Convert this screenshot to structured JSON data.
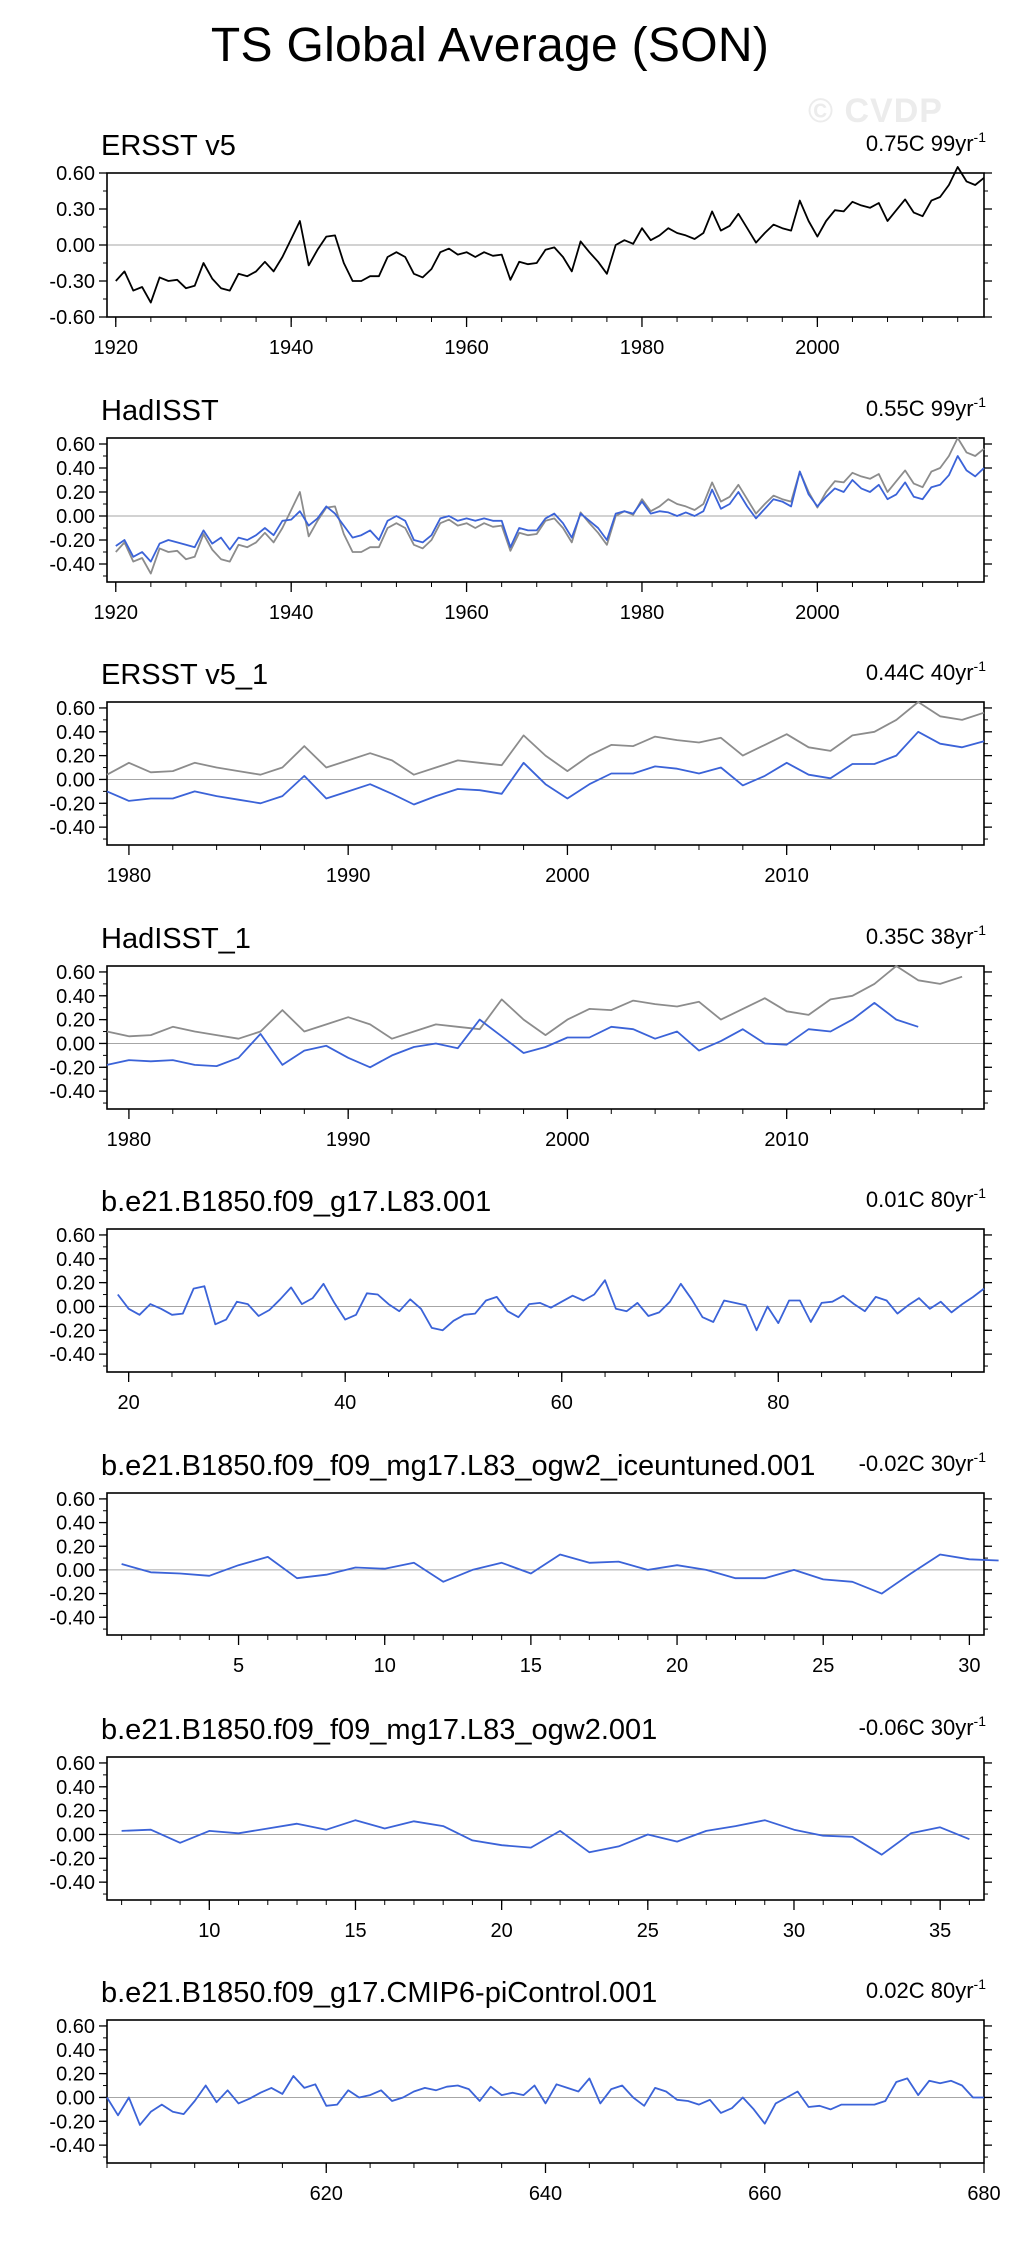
{
  "title": "TS Global Average (SON)",
  "watermark": "© CVDP",
  "colors": {
    "primary": "#000000",
    "model": "#3b63d8",
    "reference": "#8c8c8c",
    "zero": "#a6a6a6"
  },
  "chart_data": [
    {
      "type": "line",
      "title": "ERSST v5",
      "trend_label": {
        "value": "0.75C 99yr",
        "superscript": "-1"
      },
      "xlim": [
        1919,
        2019
      ],
      "ylim": [
        -0.6,
        0.6
      ],
      "yticks": [
        "0.60",
        "0.30",
        "0.00",
        "-0.30",
        "-0.60"
      ],
      "xticks": [
        1920,
        1940,
        1960,
        1980,
        2000
      ],
      "x_start": 1920,
      "series": [
        {
          "color": "primary",
          "values": [
            -0.3,
            -0.22,
            -0.38,
            -0.35,
            -0.48,
            -0.27,
            -0.3,
            -0.29,
            -0.36,
            -0.34,
            -0.15,
            -0.28,
            -0.36,
            -0.38,
            -0.24,
            -0.26,
            -0.22,
            -0.14,
            -0.22,
            -0.1,
            0.05,
            0.2,
            -0.17,
            -0.04,
            0.07,
            0.08,
            -0.15,
            -0.3,
            -0.3,
            -0.26,
            -0.26,
            -0.1,
            -0.06,
            -0.1,
            -0.24,
            -0.27,
            -0.2,
            -0.06,
            -0.03,
            -0.08,
            -0.06,
            -0.1,
            -0.06,
            -0.09,
            -0.08,
            -0.29,
            -0.14,
            -0.16,
            -0.15,
            -0.04,
            -0.02,
            -0.1,
            -0.22,
            0.03,
            -0.06,
            -0.14,
            -0.24,
            0.0,
            0.04,
            0.01,
            0.14,
            0.04,
            0.08,
            0.14,
            0.1,
            0.08,
            0.05,
            0.1,
            0.28,
            0.12,
            0.16,
            0.26,
            0.14,
            0.02,
            0.1,
            0.17,
            0.14,
            0.12,
            0.37,
            0.2,
            0.07,
            0.2,
            0.29,
            0.28,
            0.36,
            0.33,
            0.31,
            0.35,
            0.2,
            0.29,
            0.38,
            0.27,
            0.24,
            0.37,
            0.4,
            0.5,
            0.65,
            0.53,
            0.5,
            0.56
          ]
        }
      ]
    },
    {
      "type": "line",
      "title": "HadISST",
      "trend_label": {
        "value": "0.55C 99yr",
        "superscript": "-1"
      },
      "xlim": [
        1919,
        2019
      ],
      "ylim": [
        -0.55,
        0.65
      ],
      "yticks": [
        "0.60",
        "0.40",
        "0.20",
        "0.00",
        "-0.20",
        "-0.40"
      ],
      "xticks": [
        1920,
        1940,
        1960,
        1980,
        2000
      ],
      "x_start": 1920,
      "series": [
        {
          "color": "reference",
          "values": [
            -0.3,
            -0.22,
            -0.38,
            -0.35,
            -0.48,
            -0.27,
            -0.3,
            -0.29,
            -0.36,
            -0.34,
            -0.15,
            -0.28,
            -0.36,
            -0.38,
            -0.24,
            -0.26,
            -0.22,
            -0.14,
            -0.22,
            -0.1,
            0.05,
            0.2,
            -0.17,
            -0.04,
            0.07,
            0.08,
            -0.15,
            -0.3,
            -0.3,
            -0.26,
            -0.26,
            -0.1,
            -0.06,
            -0.1,
            -0.24,
            -0.27,
            -0.2,
            -0.06,
            -0.03,
            -0.08,
            -0.06,
            -0.1,
            -0.06,
            -0.09,
            -0.08,
            -0.29,
            -0.14,
            -0.16,
            -0.15,
            -0.04,
            -0.02,
            -0.1,
            -0.22,
            0.03,
            -0.06,
            -0.14,
            -0.24,
            0.0,
            0.04,
            0.01,
            0.14,
            0.04,
            0.08,
            0.14,
            0.1,
            0.08,
            0.05,
            0.1,
            0.28,
            0.12,
            0.16,
            0.26,
            0.14,
            0.02,
            0.1,
            0.17,
            0.14,
            0.12,
            0.37,
            0.2,
            0.07,
            0.2,
            0.29,
            0.28,
            0.36,
            0.33,
            0.31,
            0.35,
            0.2,
            0.29,
            0.38,
            0.27,
            0.24,
            0.37,
            0.4,
            0.5,
            0.65,
            0.53,
            0.5,
            0.56
          ]
        },
        {
          "color": "model",
          "values": [
            -0.25,
            -0.2,
            -0.34,
            -0.3,
            -0.38,
            -0.23,
            -0.2,
            -0.22,
            -0.24,
            -0.26,
            -0.12,
            -0.23,
            -0.18,
            -0.28,
            -0.18,
            -0.2,
            -0.16,
            -0.1,
            -0.16,
            -0.04,
            -0.03,
            0.04,
            -0.08,
            -0.02,
            0.08,
            0.02,
            -0.08,
            -0.18,
            -0.16,
            -0.12,
            -0.2,
            -0.04,
            0.0,
            -0.04,
            -0.2,
            -0.22,
            -0.16,
            -0.02,
            0.0,
            -0.04,
            -0.02,
            -0.04,
            -0.02,
            -0.04,
            -0.04,
            -0.26,
            -0.1,
            -0.12,
            -0.12,
            -0.02,
            0.02,
            -0.06,
            -0.18,
            0.02,
            -0.04,
            -0.1,
            -0.2,
            0.02,
            0.04,
            0.02,
            0.12,
            0.02,
            0.04,
            0.03,
            0.0,
            0.03,
            0.0,
            0.04,
            0.22,
            0.06,
            0.1,
            0.2,
            0.08,
            -0.02,
            0.06,
            0.14,
            0.12,
            0.08,
            0.37,
            0.18,
            0.08,
            0.16,
            0.23,
            0.2,
            0.3,
            0.23,
            0.2,
            0.26,
            0.14,
            0.18,
            0.28,
            0.16,
            0.14,
            0.24,
            0.26,
            0.34,
            0.5,
            0.38,
            0.33,
            0.4
          ]
        }
      ]
    },
    {
      "type": "line",
      "title": "ERSST v5_1",
      "trend_label": {
        "value": "0.44C 40yr",
        "superscript": "-1"
      },
      "xlim": [
        1979,
        2019
      ],
      "ylim": [
        -0.55,
        0.65
      ],
      "yticks": [
        "0.60",
        "0.40",
        "0.20",
        "0.00",
        "-0.20",
        "-0.40"
      ],
      "xticks": [
        1980,
        1990,
        2000,
        2010
      ],
      "x_start": 1979,
      "series": [
        {
          "color": "reference",
          "values": [
            0.04,
            0.14,
            0.06,
            0.07,
            0.14,
            0.1,
            0.07,
            0.04,
            0.1,
            0.28,
            0.1,
            0.16,
            0.22,
            0.16,
            0.04,
            0.1,
            0.16,
            0.14,
            0.12,
            0.37,
            0.2,
            0.07,
            0.2,
            0.29,
            0.28,
            0.36,
            0.33,
            0.31,
            0.35,
            0.2,
            0.29,
            0.38,
            0.27,
            0.24,
            0.37,
            0.4,
            0.5,
            0.65,
            0.53,
            0.5,
            0.56
          ]
        },
        {
          "color": "model",
          "values": [
            -0.1,
            -0.18,
            -0.16,
            -0.16,
            -0.1,
            -0.14,
            -0.17,
            -0.2,
            -0.14,
            0.03,
            -0.16,
            -0.1,
            -0.04,
            -0.12,
            -0.21,
            -0.14,
            -0.08,
            -0.09,
            -0.12,
            0.14,
            -0.04,
            -0.16,
            -0.04,
            0.05,
            0.05,
            0.11,
            0.09,
            0.05,
            0.1,
            -0.05,
            0.03,
            0.14,
            0.04,
            0.01,
            0.13,
            0.13,
            0.2,
            0.4,
            0.3,
            0.27,
            0.32
          ]
        }
      ]
    },
    {
      "type": "line",
      "title": "HadISST_1",
      "trend_label": {
        "value": "0.35C 38yr",
        "superscript": "-1"
      },
      "xlim": [
        1979,
        2019
      ],
      "ylim": [
        -0.55,
        0.65
      ],
      "yticks": [
        "0.60",
        "0.40",
        "0.20",
        "0.00",
        "-0.20",
        "-0.40"
      ],
      "xticks": [
        1980,
        1990,
        2000,
        2010
      ],
      "x_start": 1979,
      "series": [
        {
          "color": "reference",
          "values": [
            0.1,
            0.06,
            0.07,
            0.14,
            0.1,
            0.07,
            0.04,
            0.1,
            0.28,
            0.1,
            0.16,
            0.22,
            0.16,
            0.04,
            0.1,
            0.16,
            0.14,
            0.12,
            0.37,
            0.2,
            0.07,
            0.2,
            0.29,
            0.28,
            0.36,
            0.33,
            0.31,
            0.35,
            0.2,
            0.29,
            0.38,
            0.27,
            0.24,
            0.37,
            0.4,
            0.5,
            0.65,
            0.53,
            0.5,
            0.56
          ]
        },
        {
          "color": "model",
          "values": [
            -0.18,
            -0.14,
            -0.15,
            -0.14,
            -0.18,
            -0.19,
            -0.12,
            0.08,
            -0.18,
            -0.06,
            -0.02,
            -0.12,
            -0.2,
            -0.1,
            -0.03,
            0.0,
            -0.04,
            0.2,
            0.06,
            -0.08,
            -0.03,
            0.05,
            0.05,
            0.14,
            0.12,
            0.04,
            0.1,
            -0.06,
            0.02,
            0.12,
            0.0,
            -0.01,
            0.12,
            0.1,
            0.2,
            0.34,
            0.2,
            0.14
          ]
        }
      ]
    },
    {
      "type": "line",
      "title": "b.e21.B1850.f09_g17.L83.001",
      "trend_label": {
        "value": "0.01C 80yr",
        "superscript": "-1"
      },
      "xlim": [
        18,
        99
      ],
      "ylim": [
        -0.55,
        0.65
      ],
      "yticks": [
        "0.60",
        "0.40",
        "0.20",
        "0.00",
        "-0.20",
        "-0.40"
      ],
      "xticks": [
        20,
        40,
        60,
        80
      ],
      "x_start": 19,
      "series": [
        {
          "color": "model",
          "values": [
            0.1,
            -0.02,
            -0.07,
            0.02,
            -0.02,
            -0.07,
            -0.06,
            0.15,
            0.17,
            -0.15,
            -0.11,
            0.04,
            0.02,
            -0.08,
            -0.03,
            0.06,
            0.16,
            0.02,
            0.07,
            0.19,
            0.03,
            -0.11,
            -0.07,
            0.11,
            0.1,
            0.02,
            -0.04,
            0.06,
            -0.02,
            -0.18,
            -0.2,
            -0.12,
            -0.07,
            -0.06,
            0.05,
            0.08,
            -0.04,
            -0.09,
            0.02,
            0.03,
            -0.01,
            0.04,
            0.09,
            0.05,
            0.1,
            0.22,
            -0.02,
            -0.04,
            0.03,
            -0.08,
            -0.05,
            0.04,
            0.19,
            0.06,
            -0.09,
            -0.13,
            0.05,
            0.03,
            0.01,
            -0.2,
            0.0,
            -0.14,
            0.05,
            0.05,
            -0.13,
            0.03,
            0.04,
            0.09,
            0.02,
            -0.04,
            0.08,
            0.05,
            -0.06,
            0.01,
            0.07,
            -0.02,
            0.04,
            -0.05,
            0.02,
            0.08,
            0.15
          ]
        }
      ]
    },
    {
      "type": "line",
      "title": "b.e21.B1850.f09_f09_mg17.L83_ogw2_iceuntuned.001",
      "trend_label": {
        "value": "-0.02C 30yr",
        "superscript": "-1"
      },
      "xlim": [
        0.5,
        30.5
      ],
      "ylim": [
        -0.55,
        0.65
      ],
      "yticks": [
        "0.60",
        "0.40",
        "0.20",
        "0.00",
        "-0.20",
        "-0.40"
      ],
      "xticks": [
        5,
        10,
        15,
        20,
        25,
        30
      ],
      "x_start": 1,
      "series": [
        {
          "color": "model",
          "values": [
            0.05,
            -0.02,
            -0.03,
            -0.05,
            0.04,
            0.11,
            -0.07,
            -0.04,
            0.02,
            0.01,
            0.06,
            -0.1,
            0.0,
            0.06,
            -0.03,
            0.13,
            0.06,
            0.07,
            0.0,
            0.04,
            0.0,
            -0.07,
            -0.07,
            0.0,
            -0.08,
            -0.1,
            -0.2,
            -0.03,
            0.13,
            0.09,
            0.08
          ]
        }
      ]
    },
    {
      "type": "line",
      "title": "b.e21.B1850.f09_f09_mg17.L83_ogw2.001",
      "trend_label": {
        "value": "-0.06C 30yr",
        "superscript": "-1"
      },
      "xlim": [
        6.5,
        36.5
      ],
      "ylim": [
        -0.55,
        0.65
      ],
      "yticks": [
        "0.60",
        "0.40",
        "0.20",
        "0.00",
        "-0.20",
        "-0.40"
      ],
      "xticks": [
        10,
        15,
        20,
        25,
        30,
        35
      ],
      "x_start": 7,
      "series": [
        {
          "color": "model",
          "values": [
            0.03,
            0.04,
            -0.07,
            0.03,
            0.01,
            0.05,
            0.09,
            0.04,
            0.12,
            0.05,
            0.11,
            0.07,
            -0.05,
            -0.09,
            -0.11,
            0.03,
            -0.15,
            -0.1,
            0.0,
            -0.06,
            0.03,
            0.07,
            0.12,
            0.04,
            -0.01,
            -0.02,
            -0.17,
            0.01,
            0.06,
            -0.04
          ]
        }
      ]
    },
    {
      "type": "line",
      "title": "b.e21.B1850.f09_g17.CMIP6-piControl.001",
      "trend_label": {
        "value": "0.02C 80yr",
        "superscript": "-1"
      },
      "xlim": [
        600,
        680
      ],
      "ylim": [
        -0.55,
        0.65
      ],
      "yticks": [
        "0.60",
        "0.40",
        "0.20",
        "0.00",
        "-0.20",
        "-0.40"
      ],
      "xticks": [
        620,
        640,
        660,
        680
      ],
      "x_start": 600,
      "series": [
        {
          "color": "model",
          "values": [
            0.0,
            -0.15,
            0.0,
            -0.23,
            -0.12,
            -0.06,
            -0.12,
            -0.14,
            -0.03,
            0.1,
            -0.04,
            0.06,
            -0.05,
            -0.01,
            0.04,
            0.08,
            0.03,
            0.18,
            0.08,
            0.11,
            -0.07,
            -0.06,
            0.06,
            0.0,
            0.02,
            0.06,
            -0.03,
            0.0,
            0.05,
            0.08,
            0.06,
            0.09,
            0.1,
            0.07,
            -0.03,
            0.09,
            0.02,
            0.04,
            0.02,
            0.1,
            -0.05,
            0.11,
            0.08,
            0.05,
            0.16,
            -0.05,
            0.07,
            0.1,
            0.0,
            -0.07,
            0.08,
            0.05,
            -0.02,
            -0.03,
            -0.06,
            -0.02,
            -0.13,
            -0.09,
            0.0,
            -0.1,
            -0.22,
            -0.05,
            0.0,
            0.05,
            -0.08,
            -0.07,
            -0.1,
            -0.06,
            -0.06,
            -0.06,
            -0.06,
            -0.03,
            0.13,
            0.16,
            0.02,
            0.14,
            0.12,
            0.14,
            0.1,
            0.0,
            0.0
          ]
        }
      ]
    }
  ]
}
